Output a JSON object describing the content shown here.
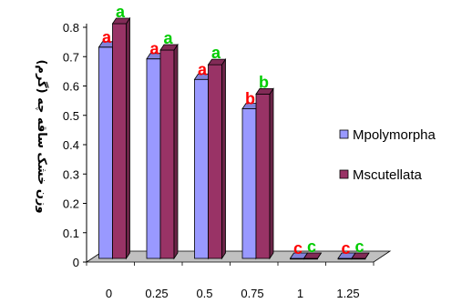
{
  "chart_data": {
    "type": "bar",
    "style": "3d-clustered-column",
    "categories": [
      "0",
      "0.25",
      "0.5",
      "0.75",
      "1",
      "1.25"
    ],
    "series": [
      {
        "name": "Mpolymorpha",
        "color": "#9999FF",
        "values": [
          0.72,
          0.68,
          0.61,
          0.51,
          0.0,
          0.0
        ],
        "labels": [
          "a",
          "a",
          "a",
          "b",
          "c",
          "c"
        ]
      },
      {
        "name": "Mscutellata",
        "color": "#993366",
        "values": [
          0.8,
          0.71,
          0.66,
          0.56,
          0.0,
          0.0
        ],
        "labels": [
          "a",
          "a",
          "a",
          "b",
          "c",
          "c"
        ]
      }
    ],
    "label_colors": {
      "a": "#00CC00",
      "a_first": "#FF0000",
      "b": "#FF0000",
      "b_second": "#00CC00",
      "c": "#FF0000",
      "c_second": "#00CC00"
    },
    "ylabel": "وزن خشک ساقه چه (گرم)",
    "xlabel": "",
    "ylim": [
      0,
      0.8
    ],
    "yticks": [
      "0",
      "0.1",
      "0.2",
      "0.3",
      "0.4",
      "0.5",
      "0.6",
      "0.7",
      "0.8"
    ],
    "grid": false,
    "legend": "right"
  }
}
